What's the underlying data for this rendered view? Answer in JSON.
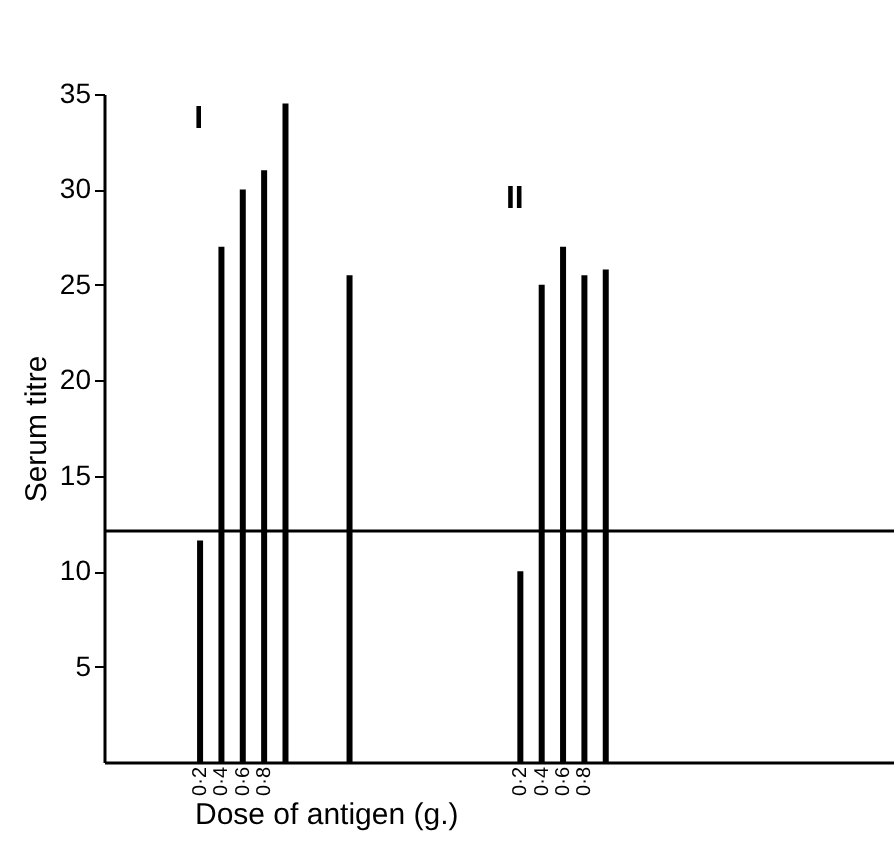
{
  "chart_data": {
    "type": "bar",
    "xlabel": "Dose of antigen (g.)",
    "ylabel": "Serum titre",
    "categories": [
      null,
      null,
      null,
      null,
      "0·2",
      "0·4",
      "0·6",
      "0·8",
      null,
      null,
      null,
      null,
      null,
      null,
      null,
      null,
      null,
      null,
      null,
      "0·2",
      "0·4",
      "0·6",
      "0·8",
      null,
      null,
      null,
      null,
      null,
      null,
      null,
      null,
      null,
      null,
      null,
      null,
      null,
      null
    ],
    "values": [
      null,
      null,
      null,
      null,
      11.6,
      27,
      30,
      31,
      34.5,
      null,
      null,
      25.5,
      null,
      null,
      null,
      null,
      null,
      null,
      null,
      10,
      25,
      27,
      25.5,
      25.8,
      null,
      null,
      null,
      null,
      null,
      null,
      null,
      null,
      null,
      null,
      null,
      null,
      null
    ],
    "color": "#000000",
    "ylim": [
      0,
      35
    ],
    "yticks": [
      5,
      10,
      15,
      20,
      25,
      30,
      35
    ],
    "ref_lines": [
      {
        "axis": "y",
        "value": 12.1
      }
    ],
    "annotations": [
      "I",
      "II"
    ],
    "grid": false
  }
}
